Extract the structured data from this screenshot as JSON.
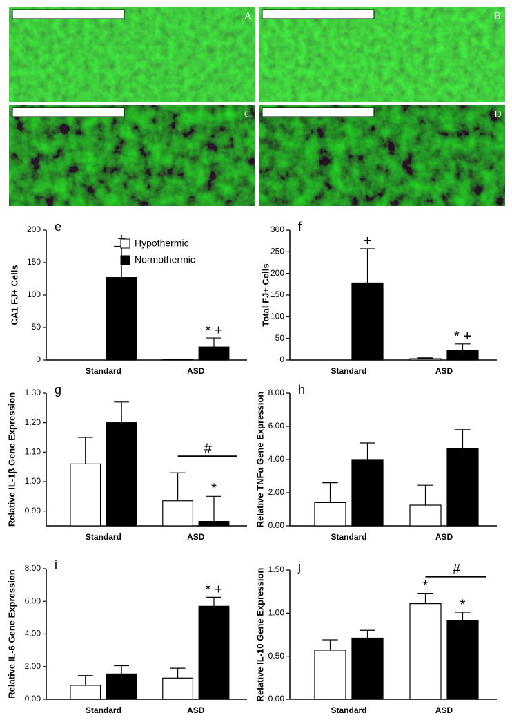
{
  "images": [
    {
      "label": "A"
    },
    {
      "label": "B"
    },
    {
      "label": "C"
    },
    {
      "label": "D"
    }
  ],
  "chart_data": [
    {
      "type": "bar",
      "panel": "e",
      "ylabel": "CA1 FJ+ Cells",
      "categories": [
        "Standard",
        "ASD"
      ],
      "ylim": [
        0,
        200
      ],
      "yticks": [
        0,
        50,
        100,
        150,
        200
      ],
      "series": [
        {
          "name": "Hypothermic",
          "color": "#ffffff",
          "values": [
            0,
            0.5
          ],
          "errors": [
            0,
            0
          ]
        },
        {
          "name": "Normothermic",
          "color": "#000000",
          "values": [
            127,
            20
          ],
          "errors": [
            48,
            14
          ],
          "annotations": [
            "+",
            "* +"
          ]
        }
      ]
    },
    {
      "type": "bar",
      "panel": "f",
      "ylabel": "Total FJ+ Cells",
      "categories": [
        "Standard",
        "ASD"
      ],
      "ylim": [
        0,
        300
      ],
      "yticks": [
        0,
        50,
        100,
        150,
        200,
        250,
        300
      ],
      "series": [
        {
          "color": "#ffffff",
          "values": [
            0,
            3
          ],
          "errors": [
            0,
            2
          ]
        },
        {
          "color": "#000000",
          "values": [
            178,
            22
          ],
          "errors": [
            79,
            15
          ],
          "annotations": [
            "+",
            "* +"
          ]
        }
      ]
    },
    {
      "type": "bar",
      "panel": "g",
      "ylabel": "Relative IL-1β Gene Expression",
      "categories": [
        "Standard",
        "ASD"
      ],
      "ylim": [
        0.85,
        1.3
      ],
      "yticks": [
        {
          "value": 0.9,
          "label": "0.90"
        },
        {
          "value": 1.0,
          "label": "1.00"
        },
        {
          "value": 1.1,
          "label": "1.10"
        },
        {
          "value": 1.2,
          "label": "1.20"
        },
        {
          "value": 1.3,
          "label": "1.30"
        }
      ],
      "brackets": [
        null,
        "#"
      ],
      "series": [
        {
          "color": "#ffffff",
          "values": [
            1.06,
            0.935
          ],
          "errors": [
            0.09,
            0.095
          ]
        },
        {
          "color": "#000000",
          "values": [
            1.2,
            0.865
          ],
          "errors": [
            0.07,
            0.085
          ],
          "annotations": [
            null,
            "*"
          ]
        }
      ]
    },
    {
      "type": "bar",
      "panel": "h",
      "ylabel": "Relative TNFα Gene Expression",
      "categories": [
        "Standard",
        "ASD"
      ],
      "ylim": [
        0,
        8
      ],
      "yticks": [
        {
          "value": 0,
          "label": "0.00"
        },
        {
          "value": 2,
          "label": "2.00"
        },
        {
          "value": 4,
          "label": "4.00"
        },
        {
          "value": 6,
          "label": "6.00"
        },
        {
          "value": 8,
          "label": "8.00"
        }
      ],
      "series": [
        {
          "color": "#ffffff",
          "values": [
            1.4,
            1.25
          ],
          "errors": [
            1.2,
            1.2
          ]
        },
        {
          "color": "#000000",
          "values": [
            4.0,
            4.65
          ],
          "errors": [
            1.0,
            1.15
          ]
        }
      ]
    },
    {
      "type": "bar",
      "panel": "i",
      "ylabel": "Relative IL-6 Gene Expression",
      "categories": [
        "Standard",
        "ASD"
      ],
      "ylim": [
        0,
        8
      ],
      "yticks": [
        {
          "value": 0,
          "label": "0.00"
        },
        {
          "value": 2,
          "label": "2.00"
        },
        {
          "value": 4,
          "label": "4.00"
        },
        {
          "value": 6,
          "label": "6.00"
        },
        {
          "value": 8,
          "label": "8.00"
        }
      ],
      "series": [
        {
          "color": "#ffffff",
          "values": [
            0.85,
            1.3
          ],
          "errors": [
            0.6,
            0.6
          ]
        },
        {
          "color": "#000000",
          "values": [
            1.55,
            5.7
          ],
          "errors": [
            0.5,
            0.55
          ],
          "annotations": [
            null,
            "* +"
          ]
        }
      ]
    },
    {
      "type": "bar",
      "panel": "j",
      "ylabel": "Relative IL-10 Gene Expression",
      "categories": [
        "Standard",
        "ASD"
      ],
      "ylim": [
        0,
        1.5
      ],
      "yticks": [
        {
          "value": 0,
          "label": "0.00"
        },
        {
          "value": 0.5,
          "label": "0.50"
        },
        {
          "value": 1.0,
          "label": "1.00"
        },
        {
          "value": 1.5,
          "label": "1.50"
        }
      ],
      "brackets": [
        null,
        "#"
      ],
      "series": [
        {
          "color": "#ffffff",
          "values": [
            0.57,
            1.11
          ],
          "errors": [
            0.12,
            0.12
          ],
          "annotations": [
            null,
            "*"
          ]
        },
        {
          "color": "#000000",
          "values": [
            0.71,
            0.91
          ],
          "errors": [
            0.09,
            0.1
          ],
          "annotations": [
            null,
            "*"
          ]
        }
      ]
    }
  ]
}
